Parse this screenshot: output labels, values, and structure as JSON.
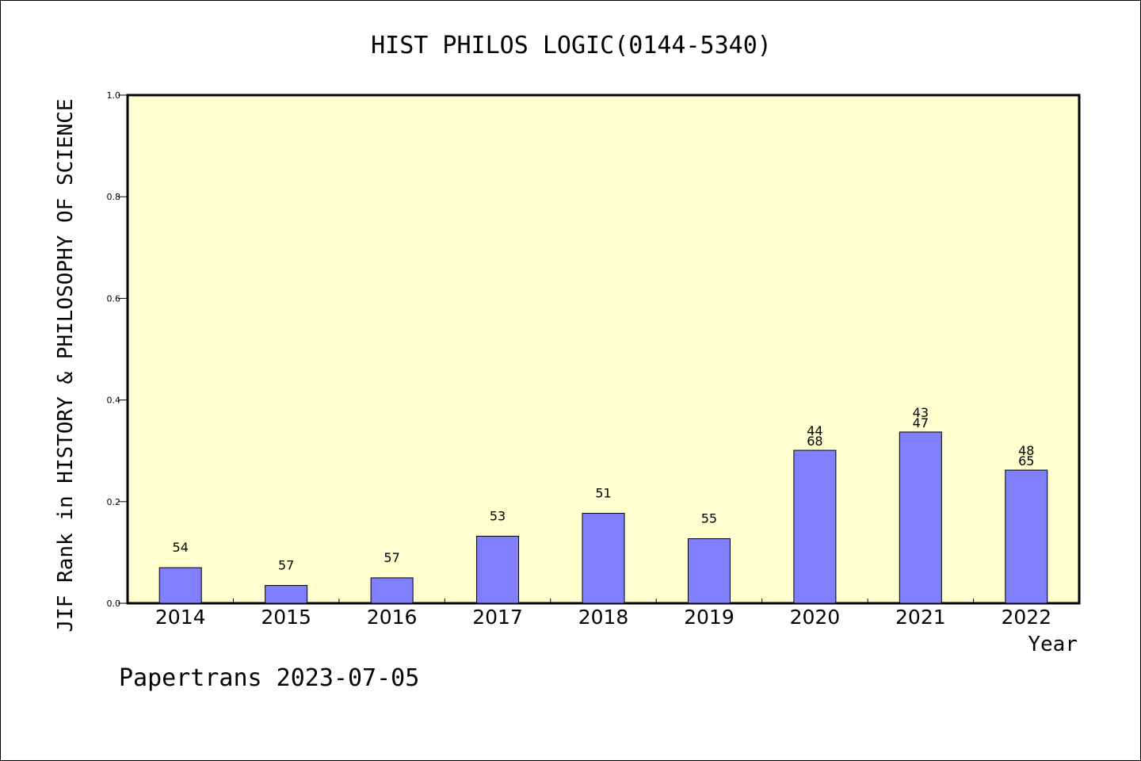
{
  "chart_data": {
    "type": "bar",
    "title": "HIST PHILOS LOGIC(0144-5340)",
    "xlabel": "Year",
    "ylabel": "JIF Rank in HISTORY & PHILOSOPHY OF SCIENCE",
    "ylim": [
      0,
      1.0
    ],
    "yticks": [
      "0.0",
      "0.2",
      "0.4",
      "0.6",
      "0.8",
      "1.0"
    ],
    "categories": [
      "2014",
      "2015",
      "2016",
      "2017",
      "2018",
      "2019",
      "2020",
      "2021",
      "2022"
    ],
    "values": [
      0.07,
      0.035,
      0.05,
      0.132,
      0.177,
      0.127,
      0.301,
      0.337,
      0.262
    ],
    "data_labels": [
      [
        "54"
      ],
      [
        "57"
      ],
      [
        "57"
      ],
      [
        "53"
      ],
      [
        "51"
      ],
      [
        "55"
      ],
      [
        "44",
        "68"
      ],
      [
        "43",
        "47"
      ],
      [
        "48",
        "65"
      ]
    ],
    "grid": false,
    "colors": {
      "plot_background": "#ffffd0",
      "bar_fill": "#8080ff",
      "bar_stroke": "#000000"
    }
  },
  "footer": {
    "text": "Papertrans 2023-07-05"
  }
}
